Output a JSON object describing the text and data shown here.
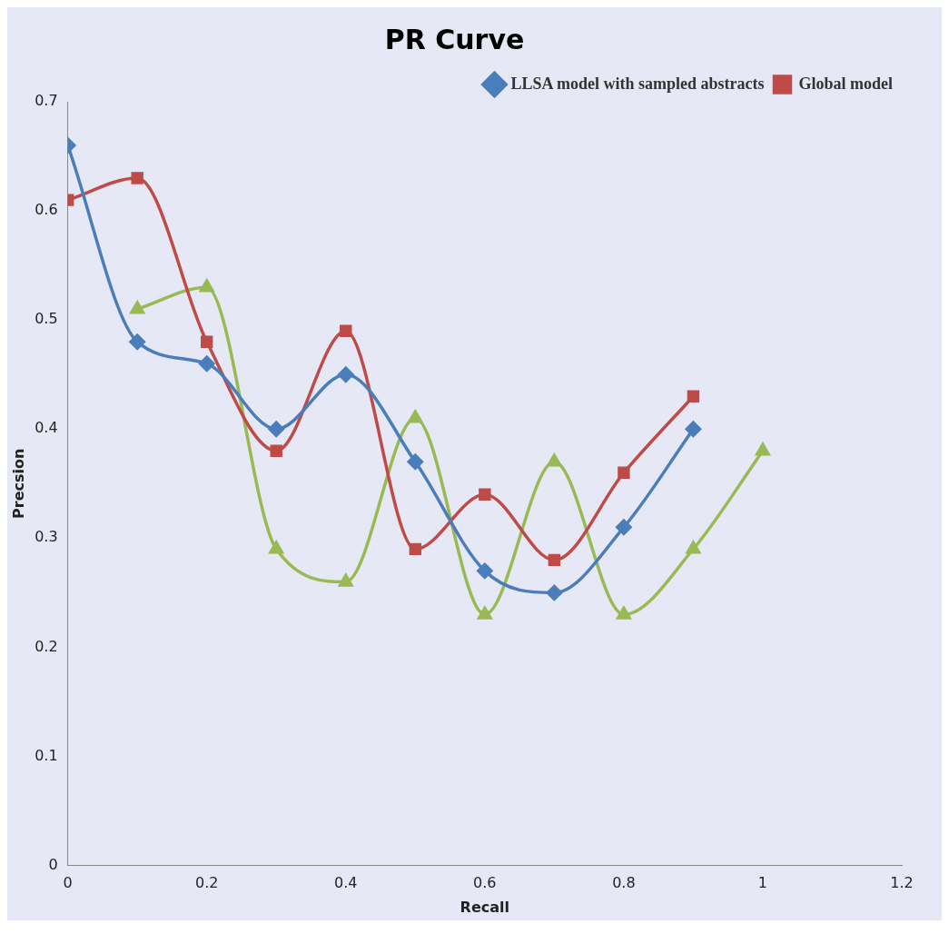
{
  "chart_data": {
    "type": "line",
    "title": "PR Curve",
    "xlabel": "Recall",
    "ylabel": "Precsion",
    "xlim": [
      0,
      1.2
    ],
    "xticks": [
      0,
      0.2,
      0.4,
      0.6,
      0.8,
      1,
      1.2
    ],
    "ylim": [
      0,
      0.7
    ],
    "yticks": [
      0,
      0.1,
      0.2,
      0.3,
      0.4,
      0.5,
      0.6,
      0.7
    ],
    "grid": false,
    "legend": "top right",
    "series": [
      {
        "name": "LLSA model with sampled abstracts",
        "color": "#4a7ebb",
        "marker": "diamond",
        "x": [
          0,
          0.1,
          0.2,
          0.3,
          0.4,
          0.5,
          0.6,
          0.7,
          0.8,
          0.9
        ],
        "values": [
          0.66,
          0.48,
          0.46,
          0.4,
          0.45,
          0.37,
          0.27,
          0.25,
          0.31,
          0.4
        ]
      },
      {
        "name": "Global model",
        "color": "#be4b48",
        "marker": "square",
        "x": [
          0,
          0.1,
          0.2,
          0.3,
          0.4,
          0.5,
          0.6,
          0.7,
          0.8,
          0.9
        ],
        "values": [
          0.61,
          0.63,
          0.48,
          0.38,
          0.49,
          0.29,
          0.34,
          0.28,
          0.36,
          0.43
        ]
      },
      {
        "color": "#98b954",
        "marker": "triangle",
        "x": [
          0.1,
          0.2,
          0.3,
          0.4,
          0.5,
          0.6,
          0.7,
          0.8,
          0.9,
          1
        ],
        "values": [
          0.51,
          0.53,
          0.29,
          0.26,
          0.41,
          0.23,
          0.37,
          0.23,
          0.29,
          0.38
        ]
      }
    ]
  }
}
